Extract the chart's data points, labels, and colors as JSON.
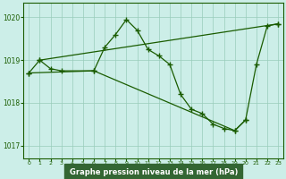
{
  "title": "Graphe pression niveau de la mer (hPa)",
  "bg_color": "#cceee8",
  "line_color": "#1a5c00",
  "grid_color": "#99ccbb",
  "xlabel_bg": "#336633",
  "xlabel_fg": "#ffffff",
  "xlim": [
    -0.5,
    23.5
  ],
  "ylim": [
    1016.7,
    1020.35
  ],
  "yticks": [
    1017,
    1018,
    1019,
    1020
  ],
  "xticks": [
    0,
    1,
    2,
    3,
    4,
    5,
    6,
    7,
    8,
    9,
    10,
    11,
    12,
    13,
    14,
    15,
    16,
    17,
    18,
    19,
    20,
    21,
    22,
    23
  ],
  "line_zigzag": {
    "x": [
      0,
      1,
      2,
      3,
      6,
      7,
      8,
      9,
      10,
      11,
      12,
      13,
      14,
      15,
      16,
      17,
      18,
      19,
      20,
      21,
      22,
      23
    ],
    "y": [
      1018.7,
      1019.0,
      1018.8,
      1018.75,
      1018.75,
      1019.3,
      1019.6,
      1019.95,
      1019.7,
      1019.25,
      1019.1,
      1018.9,
      1018.2,
      1017.85,
      1017.75,
      1017.5,
      1017.4,
      1017.35,
      1017.6,
      1018.9,
      1019.8,
      1019.85
    ]
  },
  "line_upper": {
    "x": [
      1,
      23
    ],
    "y": [
      1019.0,
      1019.85
    ]
  },
  "line_lower": {
    "x": [
      0,
      6,
      19,
      20
    ],
    "y": [
      1018.7,
      1018.75,
      1017.35,
      1017.6
    ]
  }
}
